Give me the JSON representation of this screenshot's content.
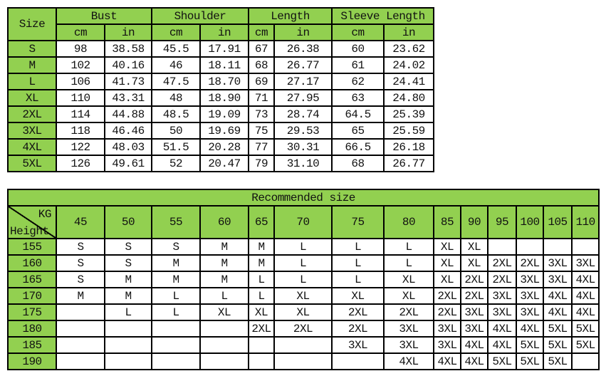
{
  "measurements": {
    "size_header": "Size",
    "groups": [
      "Bust",
      "Shoulder",
      "Length",
      "Sleeve Length"
    ],
    "units": [
      "cm",
      "in",
      "cm",
      "in",
      "cm",
      "in",
      "cm",
      "in"
    ],
    "rows": [
      [
        "S",
        "98",
        "38.58",
        "45.5",
        "17.91",
        "67",
        "26.38",
        "60",
        "23.62"
      ],
      [
        "M",
        "102",
        "40.16",
        "46",
        "18.11",
        "68",
        "26.77",
        "61",
        "24.02"
      ],
      [
        "L",
        "106",
        "41.73",
        "47.5",
        "18.70",
        "69",
        "27.17",
        "62",
        "24.41"
      ],
      [
        "XL",
        "110",
        "43.31",
        "48",
        "18.90",
        "71",
        "27.95",
        "63",
        "24.80"
      ],
      [
        "2XL",
        "114",
        "44.88",
        "48.5",
        "19.09",
        "73",
        "28.74",
        "64.5",
        "25.39"
      ],
      [
        "3XL",
        "118",
        "46.46",
        "50",
        "19.69",
        "75",
        "29.53",
        "65",
        "25.59"
      ],
      [
        "4XL",
        "122",
        "48.03",
        "51.5",
        "20.28",
        "77",
        "30.31",
        "66.5",
        "26.18"
      ],
      [
        "5XL",
        "126",
        "49.61",
        "52",
        "20.47",
        "79",
        "31.10",
        "68",
        "26.77"
      ]
    ]
  },
  "recommended": {
    "title": "Recommended size",
    "kg_label": "KG",
    "height_label": "Height",
    "weights": [
      "45",
      "50",
      "55",
      "60",
      "65",
      "70",
      "75",
      "80",
      "85",
      "90",
      "95",
      "100",
      "105",
      "110"
    ],
    "rows": [
      {
        "height": "155",
        "sizes": [
          "S",
          "S",
          "S",
          "M",
          "M",
          "L",
          "L",
          "L",
          "XL",
          "XL",
          "",
          "",
          "",
          ""
        ]
      },
      {
        "height": "160",
        "sizes": [
          "S",
          "S",
          "M",
          "M",
          "M",
          "L",
          "L",
          "L",
          "XL",
          "XL",
          "2XL",
          "2XL",
          "3XL",
          "3XL"
        ]
      },
      {
        "height": "165",
        "sizes": [
          "S",
          "M",
          "M",
          "M",
          "L",
          "L",
          "L",
          "XL",
          "XL",
          "2XL",
          "2XL",
          "3XL",
          "3XL",
          "4XL"
        ]
      },
      {
        "height": "170",
        "sizes": [
          "M",
          "M",
          "L",
          "L",
          "L",
          "XL",
          "XL",
          "XL",
          "2XL",
          "2XL",
          "3XL",
          "3XL",
          "4XL",
          "4XL"
        ]
      },
      {
        "height": "175",
        "sizes": [
          "",
          "L",
          "L",
          "XL",
          "XL",
          "XL",
          "2XL",
          "2XL",
          "2XL",
          "3XL",
          "3XL",
          "3XL",
          "4XL",
          "4XL"
        ]
      },
      {
        "height": "180",
        "sizes": [
          "",
          "",
          "",
          "",
          "2XL",
          "2XL",
          "2XL",
          "3XL",
          "3XL",
          "3XL",
          "4XL",
          "4XL",
          "5XL",
          "5XL"
        ]
      },
      {
        "height": "185",
        "sizes": [
          "",
          "",
          "",
          "",
          "",
          "",
          "3XL",
          "3XL",
          "3XL",
          "4XL",
          "4XL",
          "5XL",
          "5XL",
          "5XL"
        ]
      },
      {
        "height": "190",
        "sizes": [
          "",
          "",
          "",
          "",
          "",
          "",
          "",
          "4XL",
          "4XL",
          "4XL",
          "5XL",
          "5XL",
          "5XL",
          ""
        ]
      }
    ]
  },
  "colors": {
    "header_green": "#92d050"
  }
}
